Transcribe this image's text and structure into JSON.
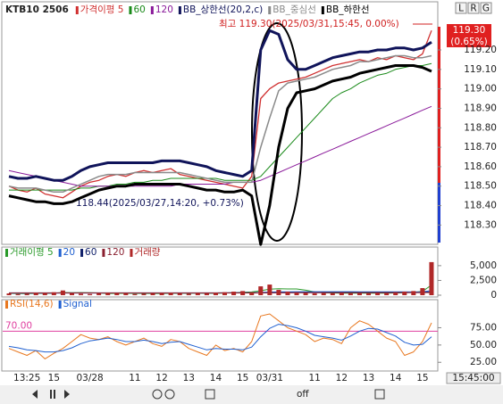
{
  "chart_data": [
    {
      "type": "line",
      "title": "KTB10 2506",
      "ylim": [
        118.21,
        119.42
      ],
      "yticks": [
        {
          "value": 118.3,
          "label": "118.30"
        },
        {
          "value": 118.4,
          "label": "118.40"
        },
        {
          "value": 118.5,
          "label": "118.50"
        },
        {
          "value": 118.6,
          "label": "118.60"
        },
        {
          "value": 118.7,
          "label": "118.70"
        },
        {
          "value": 118.8,
          "label": "118.80"
        },
        {
          "value": 118.9,
          "label": "118.90"
        },
        {
          "value": 119.0,
          "label": "119.00"
        },
        {
          "value": 119.1,
          "label": "119.10"
        },
        {
          "value": 119.2,
          "label": "119.20"
        }
      ],
      "series": [
        {
          "name": "가격이평 5",
          "color": "#d03030",
          "line_width": 1.3,
          "values": [
            118.5,
            118.48,
            118.47,
            118.49,
            118.46,
            118.45,
            118.44,
            118.47,
            118.5,
            118.52,
            118.53,
            118.55,
            118.56,
            118.55,
            118.57,
            118.58,
            118.57,
            118.58,
            118.59,
            118.56,
            118.55,
            118.54,
            118.53,
            118.52,
            118.51,
            118.5,
            118.49,
            118.55,
            118.95,
            119.0,
            119.03,
            119.04,
            119.05,
            119.06,
            119.08,
            119.1,
            119.12,
            119.13,
            119.14,
            119.15,
            119.14,
            119.16,
            119.15,
            119.17,
            119.16,
            119.15,
            119.18,
            119.3
          ]
        },
        {
          "name": "60",
          "color": "#1a8a1a",
          "line_width": 1,
          "values": [
            118.48,
            118.48,
            118.48,
            118.48,
            118.48,
            118.48,
            118.48,
            118.48,
            118.49,
            118.49,
            118.5,
            118.5,
            118.51,
            118.51,
            118.52,
            118.52,
            118.53,
            118.53,
            118.54,
            118.54,
            118.54,
            118.54,
            118.54,
            118.54,
            118.53,
            118.53,
            118.53,
            118.53,
            118.55,
            118.6,
            118.65,
            118.7,
            118.75,
            118.8,
            118.85,
            118.9,
            118.95,
            118.98,
            119.0,
            119.03,
            119.05,
            119.07,
            119.08,
            119.1,
            119.11,
            119.12,
            119.12,
            119.13
          ]
        },
        {
          "name": "120",
          "color": "#8a1a9a",
          "line_width": 1,
          "values": [
            118.58,
            118.57,
            118.56,
            118.55,
            118.54,
            118.53,
            118.52,
            118.51,
            118.5,
            118.5,
            118.5,
            118.5,
            118.5,
            118.5,
            118.5,
            118.5,
            118.5,
            118.5,
            118.5,
            118.51,
            118.51,
            118.51,
            118.51,
            118.51,
            118.51,
            118.52,
            118.52,
            118.52,
            118.53,
            118.55,
            118.57,
            118.59,
            118.61,
            118.63,
            118.65,
            118.67,
            118.69,
            118.71,
            118.73,
            118.75,
            118.77,
            118.79,
            118.81,
            118.83,
            118.85,
            118.87,
            118.89,
            118.91
          ]
        },
        {
          "name": "BB_상한선(20,2,c)",
          "color": "#10145a",
          "line_width": 3,
          "values": [
            118.55,
            118.54,
            118.54,
            118.55,
            118.54,
            118.53,
            118.53,
            118.55,
            118.58,
            118.6,
            118.61,
            118.62,
            118.62,
            118.62,
            118.62,
            118.62,
            118.62,
            118.63,
            118.63,
            118.63,
            118.62,
            118.61,
            118.6,
            118.58,
            118.57,
            118.56,
            118.55,
            118.58,
            119.2,
            119.3,
            119.28,
            119.15,
            119.1,
            119.1,
            119.12,
            119.14,
            119.16,
            119.17,
            119.18,
            119.19,
            119.19,
            119.2,
            119.2,
            119.21,
            119.21,
            119.2,
            119.21,
            119.24
          ]
        },
        {
          "name": "BB_중심선",
          "color": "#8a8a8a",
          "line_width": 1.5,
          "values": [
            118.5,
            118.49,
            118.49,
            118.49,
            118.48,
            118.47,
            118.47,
            118.49,
            118.51,
            118.53,
            118.55,
            118.56,
            118.56,
            118.56,
            118.57,
            118.57,
            118.57,
            118.57,
            118.57,
            118.57,
            118.56,
            118.55,
            118.54,
            118.53,
            118.52,
            118.52,
            118.52,
            118.52,
            118.7,
            118.85,
            118.99,
            119.03,
            119.04,
            119.05,
            119.06,
            119.08,
            119.1,
            119.11,
            119.12,
            119.14,
            119.14,
            119.15,
            119.16,
            119.17,
            119.17,
            119.16,
            119.16,
            119.17
          ]
        },
        {
          "name": "BB_하한선",
          "color": "#000000",
          "line_width": 3,
          "values": [
            118.45,
            118.44,
            118.43,
            118.42,
            118.42,
            118.41,
            118.41,
            118.42,
            118.44,
            118.46,
            118.48,
            118.49,
            118.5,
            118.5,
            118.51,
            118.51,
            118.51,
            118.51,
            118.51,
            118.51,
            118.5,
            118.49,
            118.48,
            118.48,
            118.47,
            118.47,
            118.48,
            118.45,
            118.2,
            118.4,
            118.7,
            118.9,
            118.98,
            118.99,
            119.0,
            119.02,
            119.04,
            119.05,
            119.06,
            119.08,
            119.09,
            119.1,
            119.11,
            119.12,
            119.12,
            119.12,
            119.11,
            119.09
          ]
        }
      ],
      "annotations": [
        "최고 119.30(2025/03/31,15:45, 0.00%)",
        "118.44(2025/03/27,14:20, +0.73%)"
      ],
      "price_tag": [
        "119.30",
        "(0.65%)"
      ]
    },
    {
      "type": "bar",
      "ylim": [
        0,
        7700
      ],
      "yticks": [
        0,
        {
          "value": 2500,
          "label": "2,500"
        },
        {
          "value": 5000,
          "label": "5,000"
        }
      ],
      "series": [
        {
          "name": "거래이평 5",
          "type": "line",
          "color": "#2a9a2a",
          "values": [
            300,
            280,
            270,
            300,
            300,
            340,
            460,
            430,
            440,
            410,
            370,
            290,
            300,
            310,
            300,
            300,
            280,
            290,
            320,
            320,
            320,
            330,
            320,
            320,
            360,
            430,
            500,
            540,
            760,
            1020,
            1080,
            1060,
            1060,
            840,
            540,
            430,
            370,
            350,
            330,
            340,
            330,
            350,
            340,
            370,
            430,
            490,
            650,
            1720
          ]
        },
        {
          "name": "20",
          "type": "line",
          "color": "#2060d0",
          "values": [
            350,
            350,
            345,
            345,
            345,
            350,
            360,
            365,
            365,
            360,
            360,
            365,
            370,
            370,
            365,
            360,
            360,
            360,
            360,
            360,
            360,
            360,
            360,
            365,
            375,
            390,
            410,
            420,
            470,
            530,
            560,
            575,
            585,
            590,
            590,
            590,
            590,
            590,
            585,
            580,
            580,
            575,
            570,
            565,
            555,
            550,
            580,
            800
          ]
        },
        {
          "name": "60",
          "type": "line",
          "color": "#10206a",
          "values": [
            400,
            400,
            400,
            400,
            400,
            400,
            400,
            400,
            400,
            400,
            400,
            400,
            400,
            400,
            400,
            400,
            400,
            400,
            400,
            400,
            400,
            400,
            400,
            400,
            405,
            410,
            415,
            420,
            430,
            440,
            450,
            455,
            460,
            465,
            470,
            470,
            470,
            470,
            470,
            470,
            470,
            470,
            470,
            470,
            470,
            470,
            480,
            560
          ]
        },
        {
          "name": "120",
          "type": "line",
          "color": "#8a2030",
          "values": [
            380,
            380,
            380,
            380,
            380,
            380,
            380,
            380,
            380,
            380,
            380,
            380,
            380,
            380,
            380,
            380,
            380,
            380,
            380,
            380,
            380,
            380,
            380,
            380,
            380,
            380,
            380,
            380,
            385,
            390,
            395,
            400,
            405,
            410,
            412,
            414,
            416,
            418,
            420,
            422,
            424,
            426,
            428,
            430,
            432,
            434,
            438,
            460
          ]
        },
        {
          "name": "거래량",
          "type": "bar",
          "color": "#b02828",
          "values": [
            300,
            200,
            250,
            400,
            350,
            500,
            800,
            300,
            250,
            200,
            300,
            400,
            350,
            300,
            200,
            250,
            300,
            350,
            400,
            300,
            250,
            350,
            300,
            400,
            500,
            600,
            700,
            500,
            1500,
            1800,
            900,
            600,
            500,
            400,
            300,
            350,
            300,
            400,
            300,
            350,
            300,
            400,
            350,
            500,
            600,
            700,
            1200,
            5600
          ]
        }
      ]
    },
    {
      "type": "line",
      "categories": [
        null,
        null,
        "13:25",
        null,
        null,
        "15",
        null,
        null,
        null,
        "03/28",
        null,
        null,
        null,
        null,
        "11",
        null,
        null,
        "12",
        null,
        null,
        "13",
        null,
        null,
        "14",
        null,
        null,
        "15",
        null,
        null,
        "03/31",
        null,
        null,
        null,
        null,
        "11",
        null,
        null,
        "12",
        null,
        null,
        "13",
        null,
        null,
        "14",
        null,
        null,
        "15",
        null
      ],
      "ylim": [
        15,
        113
      ],
      "yticks": [
        {
          "value": 25,
          "label": "25.00"
        },
        {
          "value": 50,
          "label": "50.00"
        },
        {
          "value": 75,
          "label": "75.00"
        }
      ],
      "level": {
        "value": 70,
        "label": "70.00",
        "color": "#e040a0"
      },
      "series": [
        {
          "name": "RSI(14,6)",
          "color": "#e87820",
          "values": [
            45,
            40,
            35,
            42,
            30,
            38,
            45,
            55,
            65,
            60,
            58,
            62,
            55,
            50,
            55,
            60,
            52,
            48,
            58,
            55,
            45,
            40,
            35,
            50,
            42,
            45,
            40,
            55,
            92,
            95,
            85,
            75,
            70,
            65,
            55,
            60,
            58,
            52,
            75,
            85,
            80,
            70,
            60,
            55,
            35,
            40,
            55,
            82
          ]
        },
        {
          "name": "Signal",
          "color": "#2060d0",
          "values": [
            48,
            46,
            43,
            42,
            40,
            40,
            42,
            46,
            52,
            56,
            58,
            60,
            58,
            55,
            55,
            57,
            55,
            52,
            54,
            55,
            51,
            47,
            43,
            45,
            44,
            44,
            43,
            47,
            62,
            74,
            80,
            78,
            75,
            70,
            64,
            62,
            60,
            57,
            63,
            70,
            74,
            73,
            68,
            63,
            54,
            50,
            51,
            62
          ]
        }
      ],
      "cursor_label": "15:45:00"
    }
  ],
  "toolbar": {
    "corner": [
      "L",
      "R",
      "G"
    ],
    "off": "off"
  }
}
